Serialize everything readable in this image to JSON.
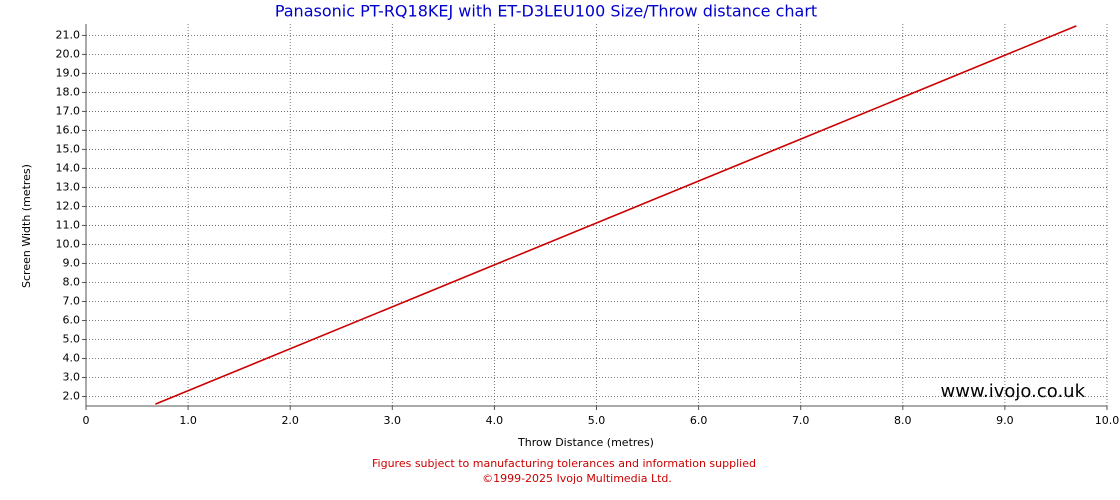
{
  "chart_data": {
    "type": "line",
    "title": "Panasonic PT-RQ18KEJ with ET-D3LEU100 Size/Throw distance chart",
    "x_label": "Throw Distance (metres)",
    "y_label": "Screen Width (metres)",
    "watermark": "www.ivojo.co.uk",
    "notes": [
      "Figures subject to manufacturing tolerances and information supplied",
      "©1999-2025 Ivojo Multimedia Ltd."
    ],
    "x": [
      0.68,
      9.7
    ],
    "values": [
      1.6,
      21.5
    ],
    "color": "#cc0000",
    "xlim": [
      0,
      10
    ],
    "ylim": [
      1.5,
      21.6
    ],
    "xticks": [
      0,
      {
        "value": 1,
        "label": "1.0"
      },
      {
        "value": 2,
        "label": "2.0"
      },
      {
        "value": 3,
        "label": "3.0"
      },
      {
        "value": 4,
        "label": "4.0"
      },
      {
        "value": 5,
        "label": "5.0"
      },
      {
        "value": 6,
        "label": "6.0"
      },
      {
        "value": 7,
        "label": "7.0"
      },
      {
        "value": 8,
        "label": "8.0"
      },
      {
        "value": 9,
        "label": "9.0"
      },
      {
        "value": 10,
        "label": "10.0"
      }
    ],
    "yticks": [
      {
        "value": 2,
        "label": "2.0"
      },
      {
        "value": 3,
        "label": "3.0"
      },
      {
        "value": 4,
        "label": "4.0"
      },
      {
        "value": 5,
        "label": "5.0"
      },
      {
        "value": 6,
        "label": "6.0"
      },
      {
        "value": 7,
        "label": "7.0"
      },
      {
        "value": 8,
        "label": "8.0"
      },
      {
        "value": 9,
        "label": "9.0"
      },
      {
        "value": 10,
        "label": "10.0"
      },
      {
        "value": 11,
        "label": "11.0"
      },
      {
        "value": 12,
        "label": "12.0"
      },
      {
        "value": 13,
        "label": "13.0"
      },
      {
        "value": 14,
        "label": "14.0"
      },
      {
        "value": 15,
        "label": "15.0"
      },
      {
        "value": 16,
        "label": "16.0"
      },
      {
        "value": 17,
        "label": "17.0"
      },
      {
        "value": 18,
        "label": "18.0"
      },
      {
        "value": 19,
        "label": "19.0"
      },
      {
        "value": 20,
        "label": "20.0"
      },
      {
        "value": 21,
        "label": "21.0"
      }
    ],
    "grid": true
  }
}
